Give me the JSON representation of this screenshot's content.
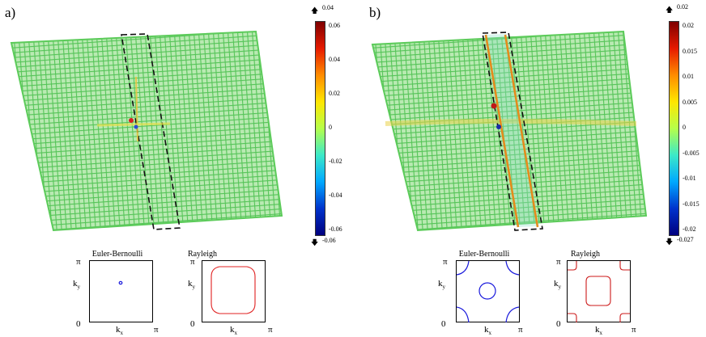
{
  "figure": {
    "panels": [
      {
        "label": "a)",
        "colorbar": {
          "max_arrow_label": "0.04",
          "min_arrow_label": "-0.06",
          "ticks": [
            "0.06",
            "0.04",
            "0.02",
            "0",
            "-0.02",
            "-0.04",
            "-0.06"
          ]
        },
        "subplots": [
          {
            "title": "Euler-Bernoulli",
            "y_top": "π",
            "y_mid": "k",
            "y_sub": "y",
            "origin": "0",
            "x_mid": "k",
            "x_sub": "x",
            "x_right": "π",
            "curve_color": "#1a1adc"
          },
          {
            "title": "Rayleigh",
            "y_top": "π",
            "y_mid": "k",
            "y_sub": "y",
            "origin": "0",
            "x_mid": "k",
            "x_sub": "x",
            "x_right": "π",
            "curve_color": "#e02020"
          }
        ]
      },
      {
        "label": "b)",
        "colorbar": {
          "max_arrow_label": "0.02",
          "min_arrow_label": "-0.027",
          "ticks": [
            "0.02",
            "0.015",
            "0.01",
            "0.005",
            "0",
            "-0.005",
            "-0.01",
            "-0.015",
            "-0.02"
          ]
        },
        "subplots": [
          {
            "title": "Euler-Bernoulli",
            "y_top": "π",
            "y_mid": "k",
            "y_sub": "y",
            "origin": "0",
            "x_mid": "k",
            "x_sub": "x",
            "x_right": "π",
            "curve_color": "#1a1adc"
          },
          {
            "title": "Rayleigh",
            "y_top": "π",
            "y_mid": "k",
            "y_sub": "y",
            "origin": "0",
            "x_mid": "k",
            "x_sub": "x",
            "x_right": "π",
            "curve_color": "#cc1a1a"
          }
        ]
      }
    ],
    "colors": {
      "lattice": "#6fd36a",
      "lattice_dark": "#3fa84a",
      "box": "#000000"
    }
  }
}
